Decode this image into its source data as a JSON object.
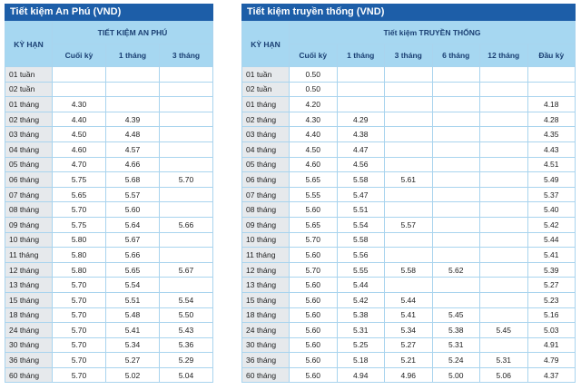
{
  "tables": [
    {
      "title": "Tiết kiệm An Phú (VND)",
      "term_header": "KỲ HẠN",
      "group_header": "TIẾT KIỆM AN PHÚ",
      "columns": [
        "Cuối kỳ",
        "1 tháng",
        "3 tháng"
      ],
      "rows": [
        [
          "01 tuần",
          null,
          null,
          null
        ],
        [
          "02 tuần",
          null,
          null,
          null
        ],
        [
          "01 tháng",
          "4.30",
          null,
          null
        ],
        [
          "02 tháng",
          "4.40",
          "4.39",
          null
        ],
        [
          "03 tháng",
          "4.50",
          "4.48",
          null
        ],
        [
          "04 tháng",
          "4.60",
          "4.57",
          null
        ],
        [
          "05 tháng",
          "4.70",
          "4.66",
          null
        ],
        [
          "06 tháng",
          "5.75",
          "5.68",
          "5.70"
        ],
        [
          "07 tháng",
          "5.65",
          "5.57",
          null
        ],
        [
          "08 tháng",
          "5.70",
          "5.60",
          null
        ],
        [
          "09 tháng",
          "5.75",
          "5.64",
          "5.66"
        ],
        [
          "10 tháng",
          "5.80",
          "5.67",
          null
        ],
        [
          "11 tháng",
          "5.80",
          "5.66",
          null
        ],
        [
          "12 tháng",
          "5.80",
          "5.65",
          "5.67"
        ],
        [
          "13 tháng",
          "5.70",
          "5.54",
          null
        ],
        [
          "15 tháng",
          "5.70",
          "5.51",
          "5.54"
        ],
        [
          "18 tháng",
          "5.70",
          "5.48",
          "5.50"
        ],
        [
          "24 tháng",
          "5.70",
          "5.41",
          "5.43"
        ],
        [
          "30 tháng",
          "5.70",
          "5.34",
          "5.36"
        ],
        [
          "36 tháng",
          "5.70",
          "5.27",
          "5.29"
        ],
        [
          "60 tháng",
          "5.70",
          "5.02",
          "5.04"
        ]
      ]
    },
    {
      "title": "Tiết kiệm truyền thống (VND)",
      "term_header": "KỲ HẠN",
      "group_header": "Tiết kiệm TRUYỀN THỐNG",
      "columns": [
        "Cuối kỳ",
        "1 tháng",
        "3 tháng",
        "6 tháng",
        "12 tháng",
        "Đầu kỳ"
      ],
      "rows": [
        [
          "01 tuần",
          "0.50",
          null,
          null,
          null,
          null,
          null
        ],
        [
          "02 tuần",
          "0.50",
          null,
          null,
          null,
          null,
          null
        ],
        [
          "01 tháng",
          "4.20",
          null,
          null,
          null,
          null,
          "4.18"
        ],
        [
          "02 tháng",
          "4.30",
          "4.29",
          null,
          null,
          null,
          "4.28"
        ],
        [
          "03 tháng",
          "4.40",
          "4.38",
          null,
          null,
          null,
          "4.35"
        ],
        [
          "04 tháng",
          "4.50",
          "4.47",
          null,
          null,
          null,
          "4.43"
        ],
        [
          "05 tháng",
          "4.60",
          "4.56",
          null,
          null,
          null,
          "4.51"
        ],
        [
          "06 tháng",
          "5.65",
          "5.58",
          "5.61",
          null,
          null,
          "5.49"
        ],
        [
          "07 tháng",
          "5.55",
          "5.47",
          null,
          null,
          null,
          "5.37"
        ],
        [
          "08 tháng",
          "5.60",
          "5.51",
          null,
          null,
          null,
          "5.40"
        ],
        [
          "09 tháng",
          "5.65",
          "5.54",
          "5.57",
          null,
          null,
          "5.42"
        ],
        [
          "10 tháng",
          "5.70",
          "5.58",
          null,
          null,
          null,
          "5.44"
        ],
        [
          "11 tháng",
          "5.60",
          "5.56",
          null,
          null,
          null,
          "5.41"
        ],
        [
          "12 tháng",
          "5.70",
          "5.55",
          "5.58",
          "5.62",
          null,
          "5.39"
        ],
        [
          "13 tháng",
          "5.60",
          "5.44",
          null,
          null,
          null,
          "5.27"
        ],
        [
          "15 tháng",
          "5.60",
          "5.42",
          "5.44",
          null,
          null,
          "5.23"
        ],
        [
          "18 tháng",
          "5.60",
          "5.38",
          "5.41",
          "5.45",
          null,
          "5.16"
        ],
        [
          "24 tháng",
          "5.60",
          "5.31",
          "5.34",
          "5.38",
          "5.45",
          "5.03"
        ],
        [
          "30 tháng",
          "5.60",
          "5.25",
          "5.27",
          "5.31",
          null,
          "4.91"
        ],
        [
          "36 tháng",
          "5.60",
          "5.18",
          "5.21",
          "5.24",
          "5.31",
          "4.79"
        ],
        [
          "60 tháng",
          "5.60",
          "4.94",
          "4.96",
          "5.00",
          "5.06",
          "4.37"
        ]
      ]
    }
  ]
}
